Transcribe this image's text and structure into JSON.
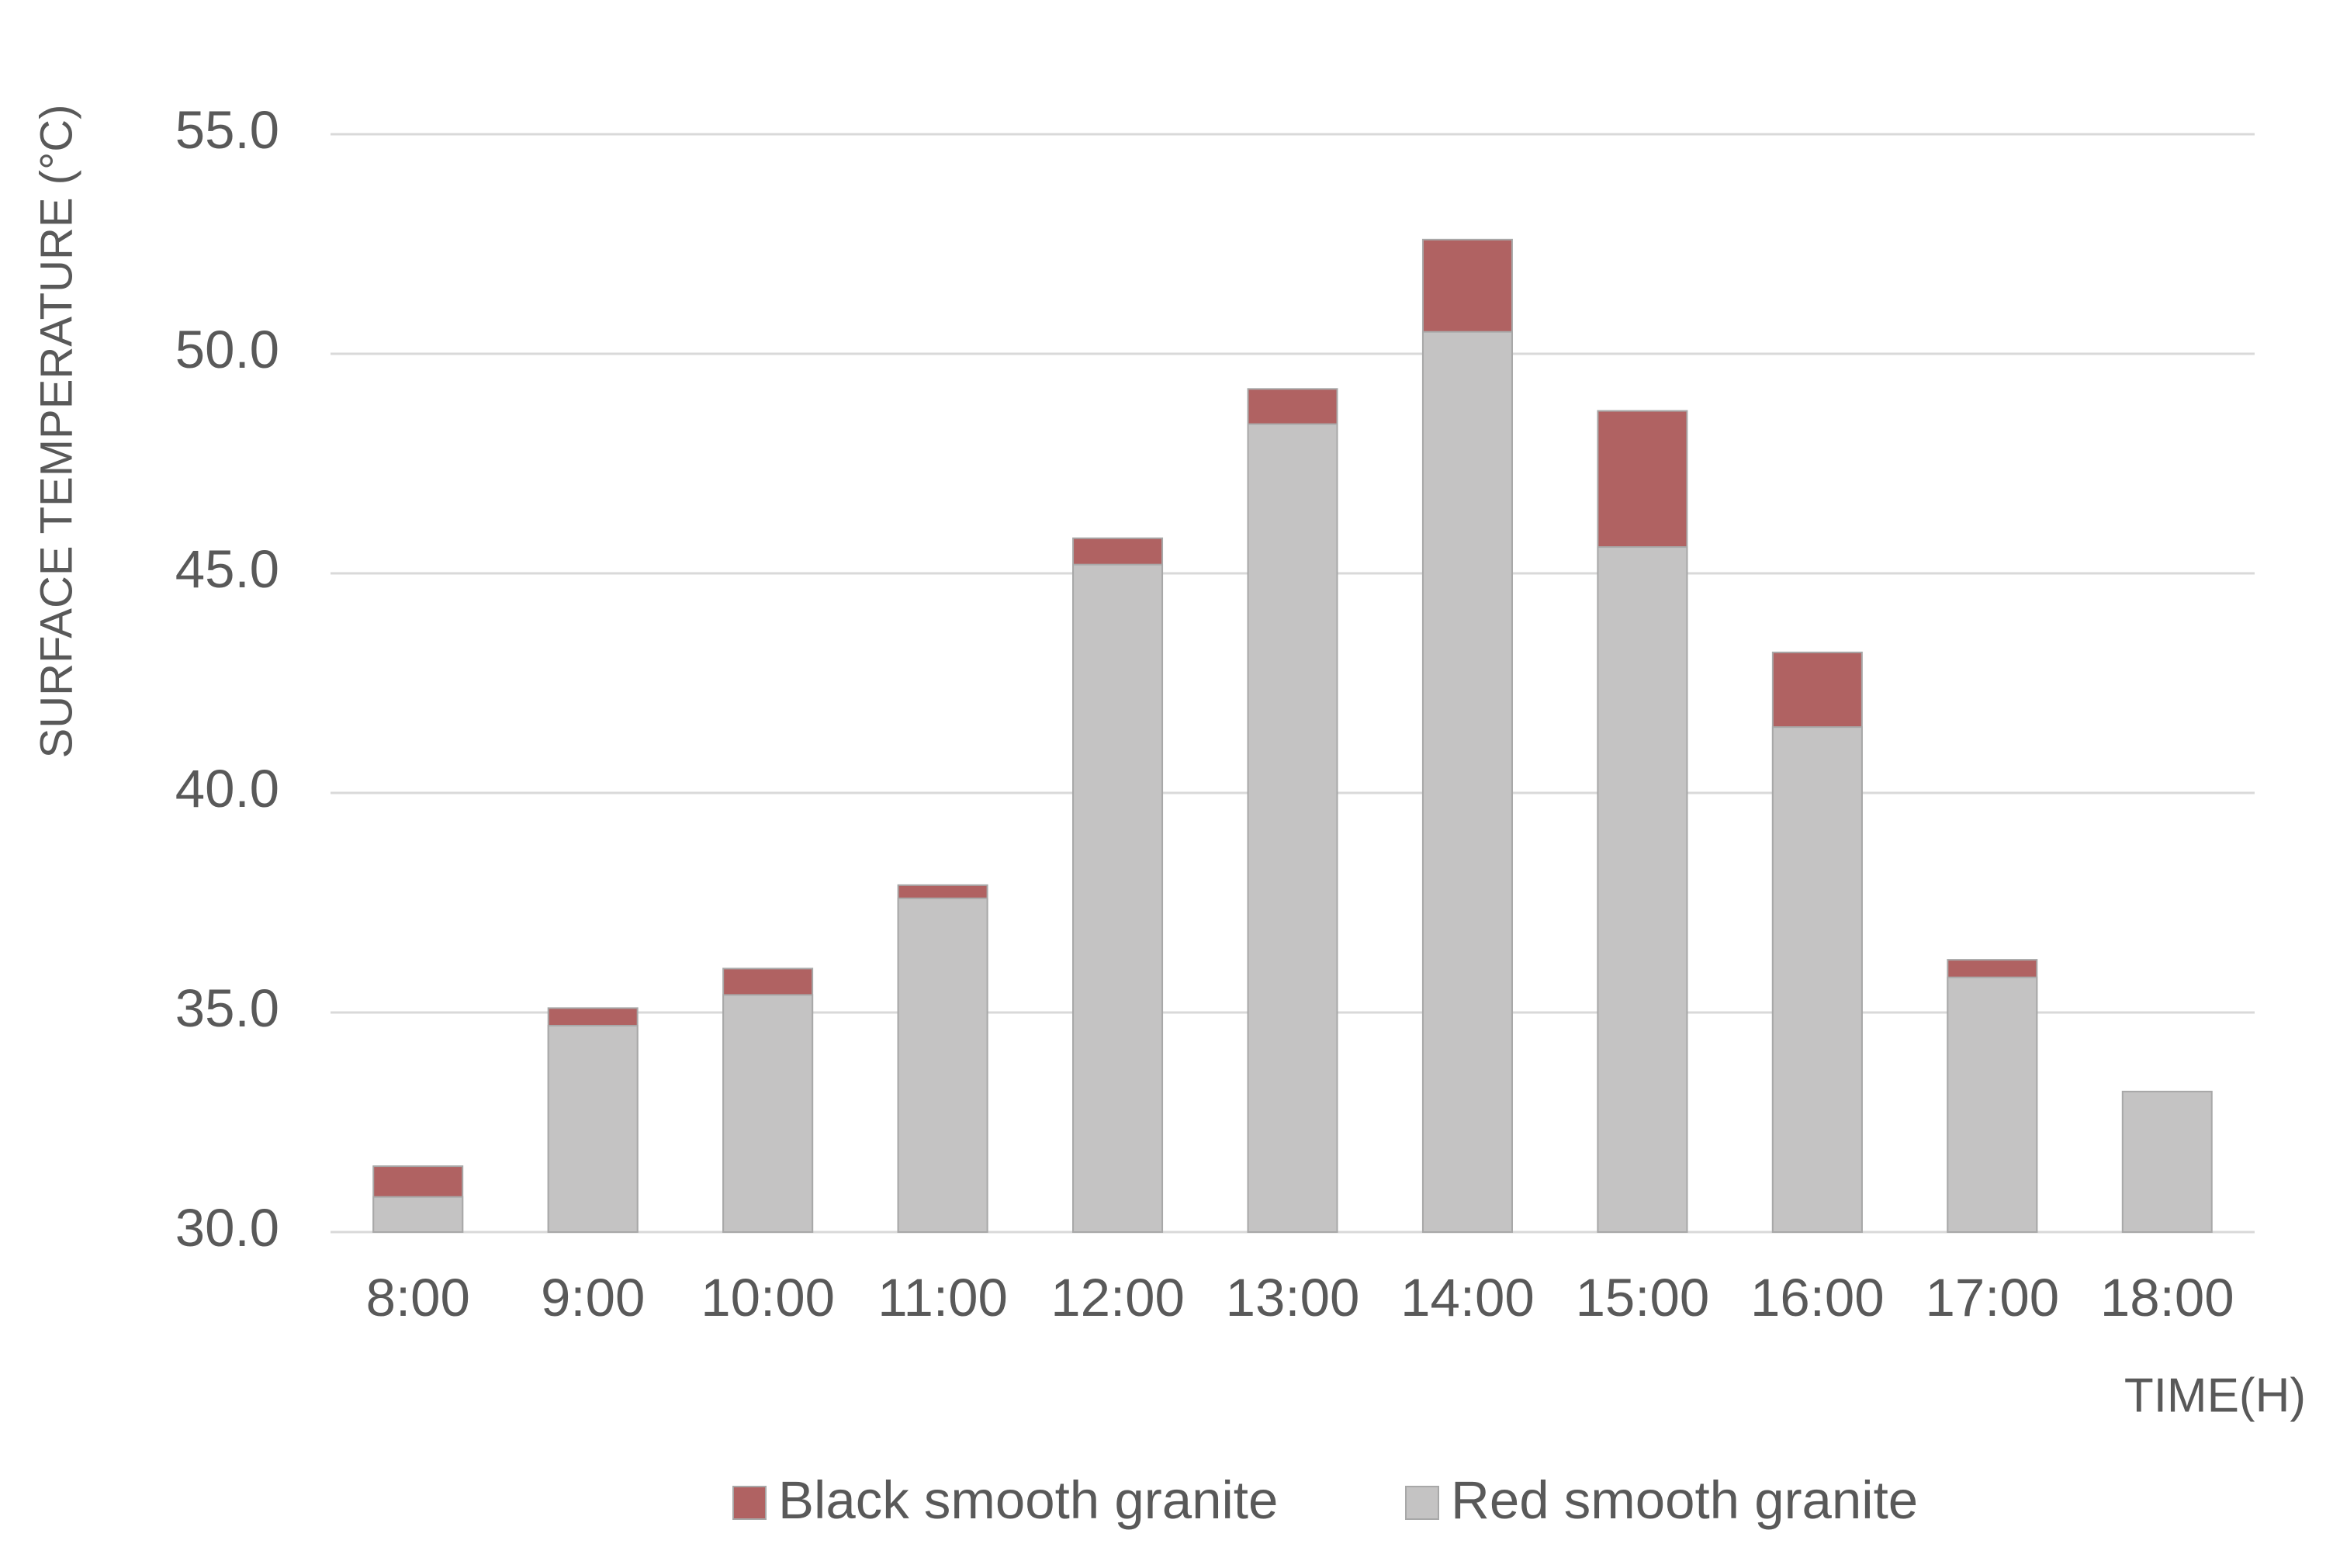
{
  "chart_data": {
    "type": "bar",
    "overlap": true,
    "y_label": "SURFACE TEMPERATURE (°C)",
    "x_label": "TIME(H)",
    "categories": [
      "8:00",
      "9:00",
      "10:00",
      "11:00",
      "12:00",
      "13:00",
      "14:00",
      "15:00",
      "16:00",
      "17:00",
      "18:00"
    ],
    "series": [
      {
        "name": "Black smooth granite",
        "color": "#b06262",
        "values": [
          31.5,
          35.1,
          36.0,
          37.9,
          45.8,
          49.2,
          52.6,
          48.7,
          43.2,
          36.2,
          null
        ]
      },
      {
        "name": "Red smooth granite",
        "color": "#c4c3c3",
        "values": [
          30.8,
          34.7,
          35.4,
          37.6,
          45.2,
          48.4,
          50.5,
          45.6,
          41.5,
          35.8,
          33.2
        ]
      }
    ],
    "ylim": [
      30,
      55
    ],
    "yticks": [
      {
        "value": 30,
        "label": "30.0"
      },
      {
        "value": 35,
        "label": "35.0"
      },
      {
        "value": 40,
        "label": "40.0"
      },
      {
        "value": 45,
        "label": "45.0"
      },
      {
        "value": 50,
        "label": "50.0"
      },
      {
        "value": 55,
        "label": "55.0"
      }
    ],
    "grid": true,
    "legend": "bottom"
  }
}
